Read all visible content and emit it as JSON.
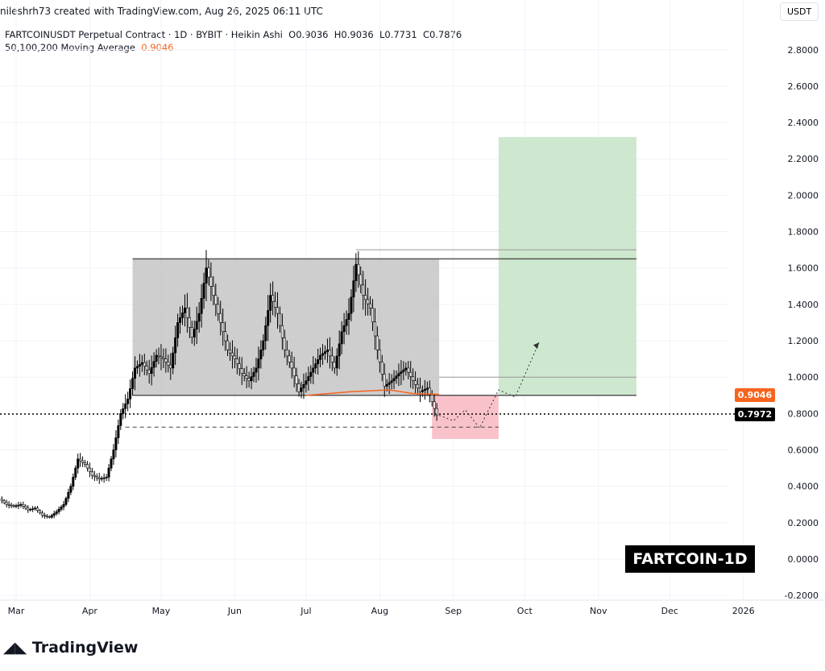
{
  "header": {
    "credit": "nileshrh73 created with TradingView.com, Aug 26, 2025 06:11 UTC"
  },
  "legend": {
    "symbol": "FARTCOINUSDT Perpetual Contract · 1D · BYBIT · Heikin Ashi",
    "o": "O0.9036",
    "h": "H0.9036",
    "l": "L0.7731",
    "c": "C0.7876",
    "ma_label": "50,100,200 Moving Average",
    "ma_value": "0.9046"
  },
  "currency": "USDT",
  "price_labels": {
    "ma": "0.9046",
    "last": "0.7972"
  },
  "watermark": "FARTCOIN-1D",
  "logo": "TradingView",
  "colors": {
    "ma": "#f7641e",
    "up": "#000000",
    "range_box": "#bdbdbd",
    "target": "#c8e6c9",
    "stop": "#f8bbc4"
  },
  "chart_data": {
    "type": "candlestick",
    "y_ticks": [
      "2.8000",
      "2.6000",
      "2.4000",
      "2.2000",
      "2.0000",
      "1.8000",
      "1.6000",
      "1.4000",
      "1.2000",
      "1.0000",
      "0.8000",
      "0.6000",
      "0.4000",
      "0.2000",
      "0.0000",
      "-0.2000"
    ],
    "x_ticks": [
      {
        "label": "Mar",
        "date": "2025-03-01"
      },
      {
        "label": "Apr",
        "date": "2025-04-01"
      },
      {
        "label": "May",
        "date": "2025-05-01"
      },
      {
        "label": "Jun",
        "date": "2025-06-01"
      },
      {
        "label": "Jul",
        "date": "2025-07-01"
      },
      {
        "label": "Aug",
        "date": "2025-08-01"
      },
      {
        "label": "Sep",
        "date": "2025-09-01"
      },
      {
        "label": "Oct",
        "date": "2025-10-01"
      },
      {
        "label": "Nov",
        "date": "2025-11-01"
      },
      {
        "label": "Dec",
        "date": "2025-12-01"
      },
      {
        "label": "2026",
        "date": "2026-01-01"
      }
    ],
    "ylim": [
      -0.25,
      2.85
    ],
    "closes": [
      [
        "2025-02-23",
        0.33
      ],
      [
        "2025-02-26",
        0.3
      ],
      [
        "2025-03-01",
        0.29
      ],
      [
        "2025-03-04",
        0.3
      ],
      [
        "2025-03-07",
        0.27
      ],
      [
        "2025-03-10",
        0.28
      ],
      [
        "2025-03-13",
        0.24
      ],
      [
        "2025-03-16",
        0.23
      ],
      [
        "2025-03-19",
        0.26
      ],
      [
        "2025-03-22",
        0.3
      ],
      [
        "2025-03-25",
        0.4
      ],
      [
        "2025-03-28",
        0.55
      ],
      [
        "2025-03-31",
        0.52
      ],
      [
        "2025-04-03",
        0.46
      ],
      [
        "2025-04-06",
        0.44
      ],
      [
        "2025-04-09",
        0.45
      ],
      [
        "2025-04-12",
        0.6
      ],
      [
        "2025-04-15",
        0.8
      ],
      [
        "2025-04-18",
        0.88
      ],
      [
        "2025-04-21",
        1.05
      ],
      [
        "2025-04-24",
        1.08
      ],
      [
        "2025-04-27",
        1.02
      ],
      [
        "2025-04-30",
        1.12
      ],
      [
        "2025-05-03",
        1.1
      ],
      [
        "2025-05-06",
        1.05
      ],
      [
        "2025-05-09",
        1.3
      ],
      [
        "2025-05-12",
        1.38
      ],
      [
        "2025-05-15",
        1.22
      ],
      [
        "2025-05-18",
        1.35
      ],
      [
        "2025-05-21",
        1.6
      ],
      [
        "2025-05-24",
        1.45
      ],
      [
        "2025-05-27",
        1.3
      ],
      [
        "2025-05-30",
        1.15
      ],
      [
        "2025-06-02",
        1.1
      ],
      [
        "2025-06-05",
        1.02
      ],
      [
        "2025-06-08",
        0.98
      ],
      [
        "2025-06-11",
        1.05
      ],
      [
        "2025-06-14",
        1.2
      ],
      [
        "2025-06-17",
        1.45
      ],
      [
        "2025-06-20",
        1.35
      ],
      [
        "2025-06-23",
        1.15
      ],
      [
        "2025-06-26",
        1.05
      ],
      [
        "2025-06-29",
        0.92
      ],
      [
        "2025-07-02",
        0.98
      ],
      [
        "2025-07-05",
        1.05
      ],
      [
        "2025-07-08",
        1.12
      ],
      [
        "2025-07-11",
        1.15
      ],
      [
        "2025-07-14",
        1.05
      ],
      [
        "2025-07-17",
        1.25
      ],
      [
        "2025-07-20",
        1.35
      ],
      [
        "2025-07-23",
        1.62
      ],
      [
        "2025-07-26",
        1.45
      ],
      [
        "2025-07-29",
        1.38
      ],
      [
        "2025-08-01",
        1.15
      ],
      [
        "2025-08-04",
        0.95
      ],
      [
        "2025-08-07",
        0.98
      ],
      [
        "2025-08-10",
        1.02
      ],
      [
        "2025-08-13",
        1.05
      ],
      [
        "2025-08-16",
        0.98
      ],
      [
        "2025-08-19",
        0.92
      ],
      [
        "2025-08-22",
        0.94
      ],
      [
        "2025-08-26",
        0.79
      ]
    ],
    "ma": [
      [
        "2025-07-01",
        0.9
      ],
      [
        "2025-07-20",
        0.92
      ],
      [
        "2025-08-05",
        0.93
      ],
      [
        "2025-08-15",
        0.91
      ],
      [
        "2025-08-26",
        0.905
      ]
    ],
    "levels": [
      {
        "price": 1.65,
        "from": "2025-04-19",
        "to": "2025-11-17"
      },
      {
        "price": 1.7,
        "from": "2025-07-22",
        "to": "2025-11-17"
      },
      {
        "price": 1.0,
        "from": "2025-08-26",
        "to": "2025-11-17"
      },
      {
        "price": 0.9,
        "from": "2025-04-19",
        "to": "2025-11-17"
      }
    ],
    "support_dashed": {
      "price": 0.725,
      "from": "2025-04-16",
      "to": "2025-09-20"
    },
    "last_price": 0.7972,
    "range_box": {
      "from": "2025-04-19",
      "to": "2025-08-26",
      "top": 1.65,
      "bottom": 0.9
    },
    "target_box": {
      "from": "2025-09-20",
      "to": "2025-11-17",
      "top": 2.32,
      "bottom": 0.9
    },
    "stop_box": {
      "from": "2025-08-23",
      "to": "2025-09-20",
      "top": 0.9,
      "bottom": 0.66
    },
    "projection": [
      [
        "2025-08-26",
        0.79
      ],
      [
        "2025-09-01",
        0.76
      ],
      [
        "2025-09-06",
        0.82
      ],
      [
        "2025-09-12",
        0.72
      ],
      [
        "2025-09-20",
        0.93
      ],
      [
        "2025-09-27",
        0.89
      ],
      [
        "2025-10-07",
        1.19
      ]
    ]
  }
}
